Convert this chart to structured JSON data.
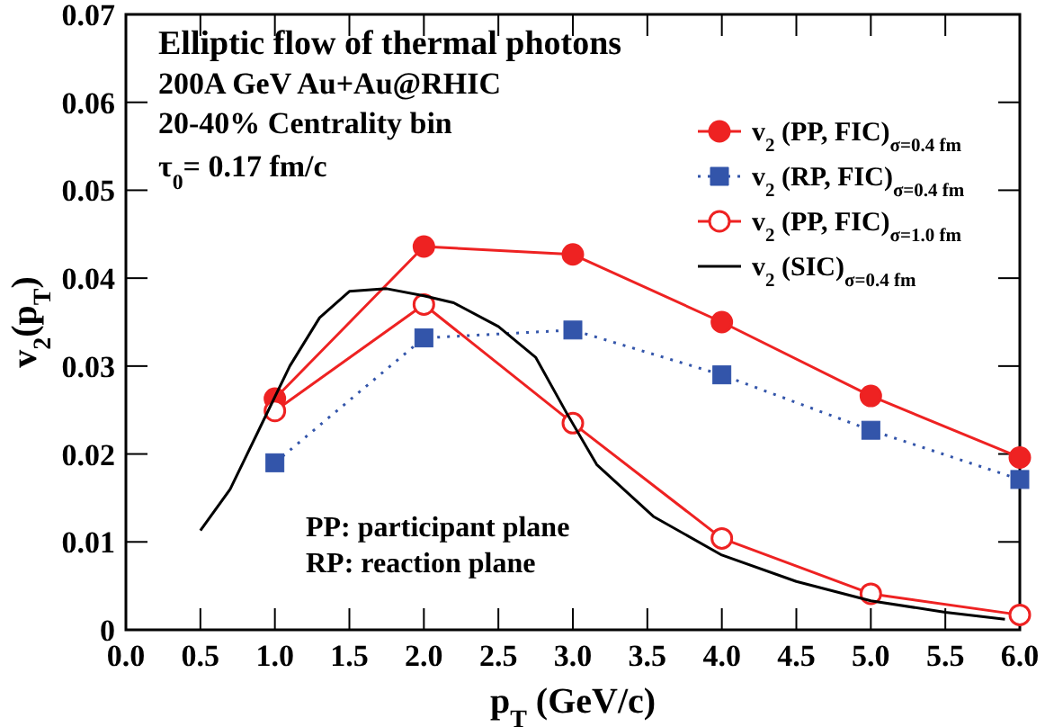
{
  "chart_data": {
    "type": "line",
    "title": "Elliptic flow of thermal photons",
    "annotations": [
      "200A GeV Au+Au@RHIC",
      "20-40% Centrality bin",
      "τ$_{0}$= 0.17 fm/c",
      "PP: participant plane",
      "RP: reaction plane"
    ],
    "xlabel": "p$_{T}$ (GeV/c)",
    "ylabel": "v$_{2}$(p$_{T}$)",
    "xlim": [
      0,
      6.0
    ],
    "ylim": [
      0,
      0.07
    ],
    "xticks": [
      {
        "value": 0,
        "label": "0.0"
      },
      {
        "value": 0.5,
        "label": "0.5"
      },
      {
        "value": 1,
        "label": "1.0"
      },
      {
        "value": 1.5,
        "label": "1.5"
      },
      {
        "value": 2,
        "label": "2.0"
      },
      {
        "value": 2.5,
        "label": "2.5"
      },
      {
        "value": 3,
        "label": "3.0"
      },
      {
        "value": 3.5,
        "label": "3.5"
      },
      {
        "value": 4,
        "label": "4.0"
      },
      {
        "value": 4.5,
        "label": "4.5"
      },
      {
        "value": 5,
        "label": "5.0"
      },
      {
        "value": 5.5,
        "label": "5.5"
      },
      {
        "value": 6,
        "label": "6.0"
      }
    ],
    "yticks": [
      0,
      0.01,
      0.02,
      0.03,
      0.04,
      0.05,
      0.06,
      0.07
    ],
    "grid": false,
    "legend": "top right",
    "series": [
      {
        "name": "v$_{2}$ (PP, FIC)$_{σ=0.4 fm}$",
        "color": "#ee2222",
        "marker": "circle",
        "line_style": "solid",
        "x": [
          1,
          2,
          3,
          4,
          5,
          6
        ],
        "values": [
          0.0263,
          0.0436,
          0.0427,
          0.035,
          0.0266,
          0.0196
        ]
      },
      {
        "name": "v$_{2}$ (RP, FIC)$_{σ=0.4 fm}$",
        "color": "#3355aa",
        "marker": "square",
        "line_style": "dotted",
        "x": [
          1,
          2,
          3,
          4,
          5,
          6
        ],
        "values": [
          0.019,
          0.0332,
          0.0341,
          0.029,
          0.0227,
          0.0171
        ]
      },
      {
        "name": "v$_{2}$ (PP, FIC)$_{σ=1.0 fm}$",
        "color": "#ee2222",
        "marker": "circle-open",
        "line_style": "solid",
        "x": [
          1,
          2,
          3,
          4,
          5,
          6
        ],
        "values": [
          0.0249,
          0.037,
          0.0235,
          0.0104,
          0.0041,
          0.0017
        ]
      },
      {
        "name": "v$_{2}$ (SIC)$_{σ=0.4 fm}$",
        "color": "#000000",
        "marker": "none",
        "line_style": "solid",
        "x": [
          0.5,
          0.7,
          0.9,
          1.1,
          1.3,
          1.5,
          1.75,
          2.0,
          2.2,
          2.5,
          2.75,
          2.96,
          3.16,
          3.54,
          4.0,
          4.5,
          5.0,
          5.5,
          5.9
        ],
        "values": [
          0.0113,
          0.016,
          0.023,
          0.03,
          0.0355,
          0.0385,
          0.0388,
          0.038,
          0.0372,
          0.0345,
          0.031,
          0.0246,
          0.0188,
          0.0129,
          0.0085,
          0.0055,
          0.0033,
          0.002,
          0.0012
        ]
      }
    ]
  }
}
